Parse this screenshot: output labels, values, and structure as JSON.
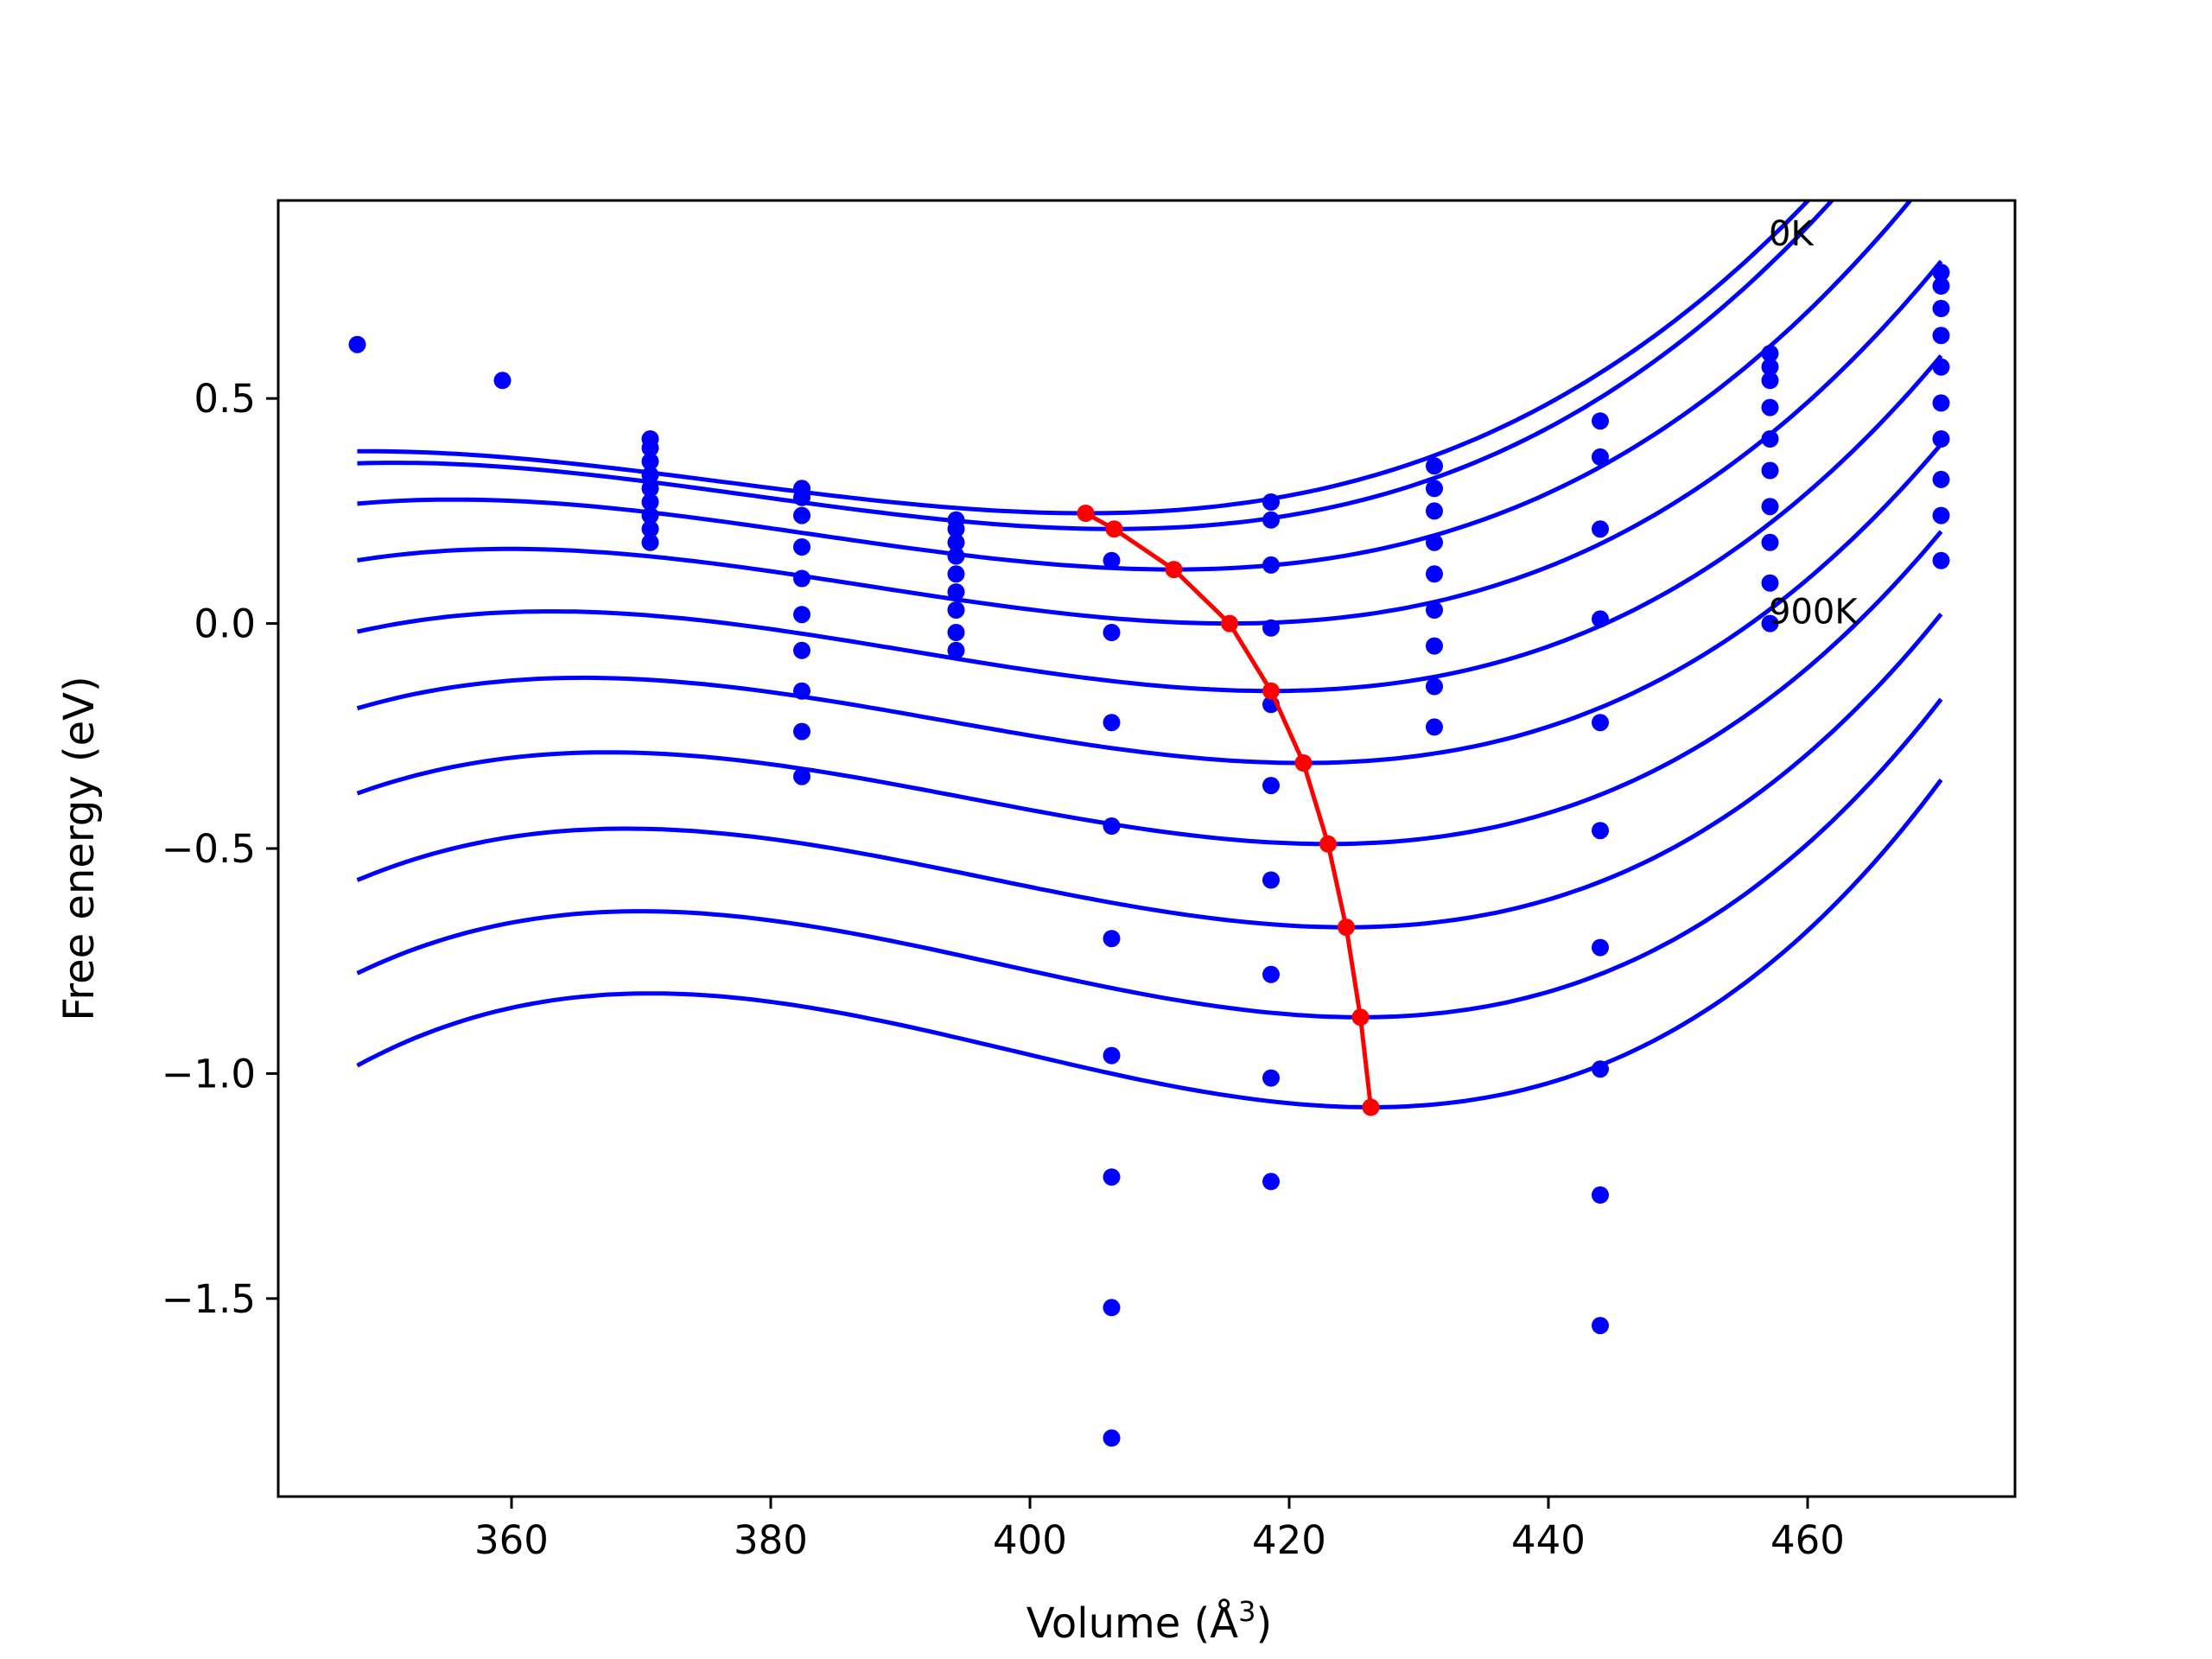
{
  "chart_data": {
    "type": "line",
    "xlabel": "Volume (Å^3)",
    "ylabel": "Free energy (eV)",
    "xlim": [
      342,
      476
    ],
    "ylim": [
      -1.94,
      0.94
    ],
    "x_ticks": [
      360,
      380,
      400,
      420,
      440,
      460
    ],
    "x_tick_labels": [
      "360",
      "380",
      "400",
      "420",
      "440",
      "460"
    ],
    "y_ticks": [
      0.5,
      0.0,
      -0.5,
      -1.0,
      -1.5
    ],
    "y_tick_labels": [
      "0.5",
      "0.0",
      "−0.5",
      "−1.0",
      "−1.5"
    ],
    "grid": false,
    "legend": "none",
    "annotations": [
      {
        "text": "0K",
        "x": 457,
        "y": 0.84
      },
      {
        "text": "900K",
        "x": 457,
        "y": 0.0
      }
    ],
    "colors": {
      "curves": "#0000ff",
      "points": "#0000ff",
      "minimum_line": "#ff0000"
    },
    "scatter_points": [
      {
        "volume": 348.1,
        "energies": [
          0.62
        ]
      },
      {
        "volume": 359.3,
        "energies": [
          0.54
        ]
      },
      {
        "volume": 370.7,
        "energies": [
          0.41,
          0.39,
          0.36,
          0.33,
          0.3,
          0.27,
          0.24,
          0.21,
          0.18
        ]
      },
      {
        "volume": 382.4,
        "energies": [
          0.3,
          0.28,
          0.24,
          0.17,
          0.1,
          0.02,
          -0.06,
          -0.15,
          -0.24,
          -0.34
        ]
      },
      {
        "volume": 394.3,
        "energies": [
          0.23,
          0.21,
          0.18,
          0.15,
          0.11,
          0.07,
          0.03,
          -0.02,
          -0.06
        ]
      },
      {
        "volume": 406.3,
        "energies": [
          0.14,
          -0.02,
          -0.22,
          -0.45,
          -0.7,
          -0.96,
          -1.23,
          -1.52,
          -1.81
        ]
      },
      {
        "volume": 418.6,
        "energies": [
          0.27,
          0.23,
          0.13,
          -0.01,
          -0.18,
          -0.36,
          -0.57,
          -0.78,
          -1.01,
          -1.24
        ]
      },
      {
        "volume": 431.2,
        "energies": [
          0.35,
          0.3,
          0.25,
          0.18,
          0.11,
          0.03,
          -0.05,
          -0.14,
          -0.23
        ]
      },
      {
        "volume": 444.0,
        "energies": [
          0.45,
          0.37,
          0.21,
          0.01,
          -0.22,
          -0.46,
          -0.72,
          -0.99,
          -1.27,
          -1.56
        ]
      },
      {
        "volume": 457.1,
        "energies": [
          0.6,
          0.57,
          0.54,
          0.48,
          0.41,
          0.34,
          0.26,
          0.18,
          0.09,
          0.0
        ]
      },
      {
        "volume": 470.3,
        "energies": [
          0.78,
          0.75,
          0.7,
          0.64,
          0.57,
          0.49,
          0.41,
          0.32,
          0.24,
          0.14
        ]
      }
    ],
    "series": [
      {
        "temperature_index": 0,
        "v0": 404.3,
        "e0": 0.245,
        "c": 0.000134,
        "v_start": 348.1,
        "v_end": 470.3
      },
      {
        "temperature_index": 1,
        "v0": 406.5,
        "e0": 0.21,
        "c": 0.000143,
        "v_start": 348.1,
        "v_end": 470.3
      },
      {
        "temperature_index": 2,
        "v0": 411.1,
        "e0": 0.12,
        "c": 0.000151,
        "v_start": 348.1,
        "v_end": 470.3
      },
      {
        "temperature_index": 3,
        "v0": 415.4,
        "e0": 0.0,
        "c": 0.000161,
        "v_start": 348.1,
        "v_end": 470.3
      },
      {
        "temperature_index": 4,
        "v0": 418.6,
        "e0": -0.15,
        "c": 0.000172,
        "v_start": 348.1,
        "v_end": 470.3
      },
      {
        "temperature_index": 5,
        "v0": 421.1,
        "e0": -0.31,
        "c": 0.000184,
        "v_start": 348.1,
        "v_end": 470.3
      },
      {
        "temperature_index": 6,
        "v0": 423.0,
        "e0": -0.49,
        "c": 0.000198,
        "v_start": 348.1,
        "v_end": 470.3
      },
      {
        "temperature_index": 7,
        "v0": 424.4,
        "e0": -0.675,
        "c": 0.000213,
        "v_start": 348.1,
        "v_end": 470.3
      },
      {
        "temperature_index": 8,
        "v0": 425.5,
        "e0": -0.875,
        "c": 0.000229,
        "v_start": 348.1,
        "v_end": 470.3
      },
      {
        "temperature_index": 9,
        "v0": 426.3,
        "e0": -1.075,
        "c": 0.000246,
        "v_start": 348.1,
        "v_end": 470.3
      }
    ],
    "minimum_line": {
      "x": [
        404.3,
        406.5,
        411.1,
        415.4,
        418.6,
        421.1,
        423.0,
        424.4,
        425.5,
        426.3
      ],
      "y": [
        0.245,
        0.21,
        0.12,
        0.0,
        -0.15,
        -0.31,
        -0.49,
        -0.675,
        -0.875,
        -1.075
      ]
    }
  }
}
